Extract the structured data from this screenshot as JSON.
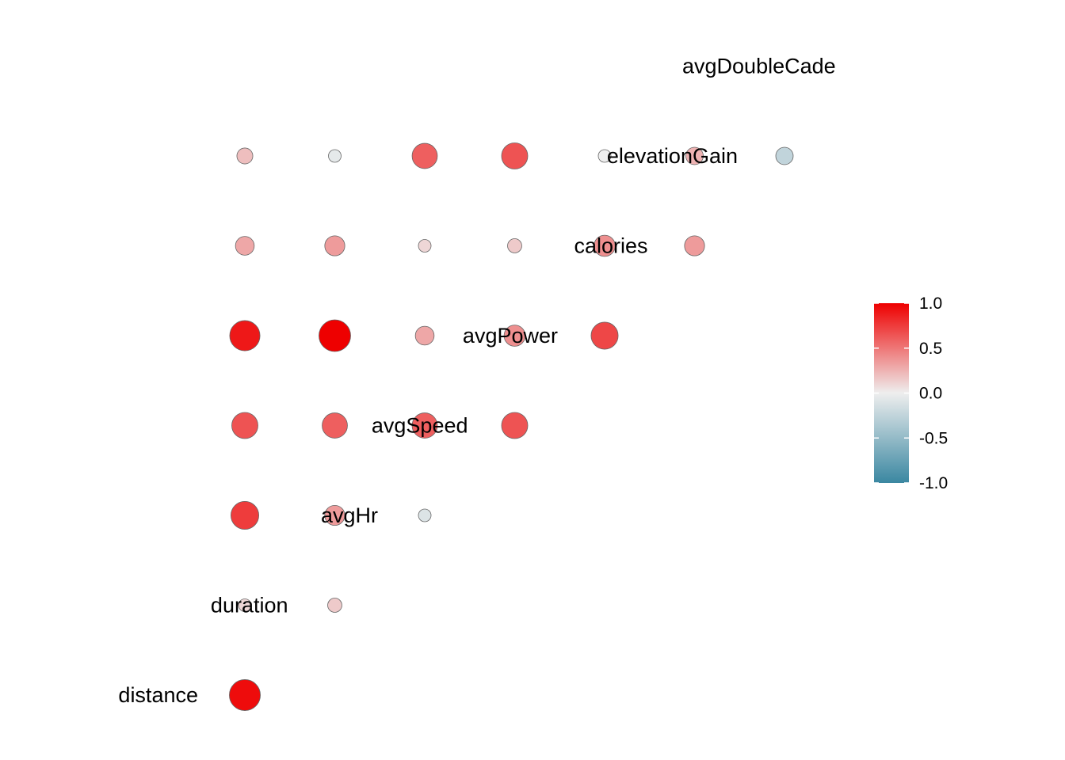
{
  "chart_data": {
    "type": "heatmap",
    "subtype": "correlation-matrix-circles",
    "title": "",
    "variables": [
      "distance",
      "duration",
      "avgHr",
      "avgSpeed",
      "avgPower",
      "calories",
      "elevationGain",
      "avgDoubleCadence"
    ],
    "variable_labels": [
      "distance",
      "duration",
      "avgHr",
      "avgSpeed",
      "avgPower",
      "calories",
      "elevationGain",
      "avgDoubleCade"
    ],
    "layout": "lower-triangle",
    "cells": [
      {
        "row": "duration",
        "col": "distance",
        "value": 0.95
      },
      {
        "row": "avgHr",
        "col": "distance",
        "value": 0.1
      },
      {
        "row": "avgHr",
        "col": "duration",
        "value": 0.15
      },
      {
        "row": "avgSpeed",
        "col": "distance",
        "value": 0.75
      },
      {
        "row": "avgSpeed",
        "col": "duration",
        "value": 0.35
      },
      {
        "row": "avgSpeed",
        "col": "avgHr",
        "value": -0.1
      },
      {
        "row": "avgPower",
        "col": "distance",
        "value": 0.65
      },
      {
        "row": "avgPower",
        "col": "duration",
        "value": 0.6
      },
      {
        "row": "avgPower",
        "col": "avgHr",
        "value": 0.6
      },
      {
        "row": "avgPower",
        "col": "avgSpeed",
        "value": 0.65
      },
      {
        "row": "calories",
        "col": "distance",
        "value": 0.9
      },
      {
        "row": "calories",
        "col": "duration",
        "value": 1.0
      },
      {
        "row": "calories",
        "col": "avgHr",
        "value": 0.3
      },
      {
        "row": "calories",
        "col": "avgSpeed",
        "value": 0.4
      },
      {
        "row": "calories",
        "col": "avgPower",
        "value": 0.7
      },
      {
        "row": "elevationGain",
        "col": "distance",
        "value": 0.3
      },
      {
        "row": "elevationGain",
        "col": "duration",
        "value": 0.35
      },
      {
        "row": "elevationGain",
        "col": "avgHr",
        "value": 0.1
      },
      {
        "row": "elevationGain",
        "col": "avgSpeed",
        "value": 0.15
      },
      {
        "row": "elevationGain",
        "col": "avgPower",
        "value": 0.4
      },
      {
        "row": "elevationGain",
        "col": "calories",
        "value": 0.35
      },
      {
        "row": "avgDoubleCadence",
        "col": "distance",
        "value": 0.2
      },
      {
        "row": "avgDoubleCadence",
        "col": "duration",
        "value": -0.05
      },
      {
        "row": "avgDoubleCadence",
        "col": "avgHr",
        "value": 0.6
      },
      {
        "row": "avgDoubleCadence",
        "col": "avgSpeed",
        "value": 0.65
      },
      {
        "row": "avgDoubleCadence",
        "col": "avgPower",
        "value": 0.0
      },
      {
        "row": "avgDoubleCadence",
        "col": "calories",
        "value": 0.25
      },
      {
        "row": "avgDoubleCadence",
        "col": "elevationGain",
        "value": -0.25
      }
    ],
    "color_scale": {
      "min": -1.0,
      "max": 1.0,
      "low_color": "#3a87a1",
      "mid_color": "#eeeeee",
      "high_color": "#ee0000",
      "ticks": [
        "1.0",
        "0.5",
        "0.0",
        "-0.5",
        "-1.0"
      ],
      "tick_values": [
        1.0,
        0.5,
        0.0,
        -0.5,
        -1.0
      ]
    },
    "legend_position": "right",
    "grid": false
  }
}
